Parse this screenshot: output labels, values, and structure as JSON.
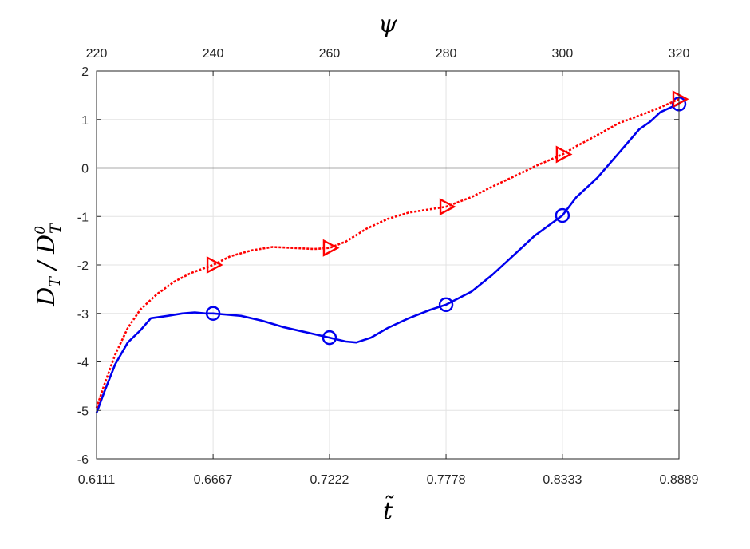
{
  "chart_data": {
    "type": "line",
    "xlabel": "t̃",
    "x2label": "ψ",
    "ylabel_main": "D",
    "ylabel_sub": "T",
    "ylabel_div": " / ",
    "ylabel_sup": "0",
    "xlim": [
      0.6111,
      0.8889
    ],
    "ylim": [
      -6,
      2
    ],
    "x_ticks": [
      "0.6111",
      "0.6667",
      "0.7222",
      "0.7778",
      "0.8333",
      "0.8889"
    ],
    "x2_ticks": [
      "220",
      "240",
      "260",
      "280",
      "300",
      "320"
    ],
    "y_ticks": [
      "-6",
      "-5",
      "-4",
      "-3",
      "-2",
      "-1",
      "0",
      "1",
      "2"
    ],
    "x_tick_values": [
      0.6111,
      0.6667,
      0.7222,
      0.7778,
      0.8333,
      0.8889
    ],
    "y_tick_values": [
      -6,
      -5,
      -4,
      -3,
      -2,
      -1,
      0,
      1,
      2
    ],
    "zero_line": 0,
    "grid": true,
    "series": [
      {
        "color": "#0000ee",
        "style": "solid",
        "marker": "circle",
        "x": [
          0.6111,
          0.615,
          0.62,
          0.626,
          0.632,
          0.637,
          0.645,
          0.652,
          0.658,
          0.663,
          0.6667,
          0.672,
          0.68,
          0.69,
          0.7,
          0.71,
          0.7222,
          0.73,
          0.735,
          0.742,
          0.75,
          0.76,
          0.77,
          0.7778,
          0.79,
          0.8,
          0.81,
          0.82,
          0.8333,
          0.84,
          0.85,
          0.855,
          0.86,
          0.865,
          0.87,
          0.875,
          0.88,
          0.885,
          0.8889
        ],
        "y": [
          -5.05,
          -4.6,
          -4.05,
          -3.6,
          -3.35,
          -3.1,
          -3.05,
          -3.0,
          -2.98,
          -3.0,
          -3.0,
          -3.02,
          -3.05,
          -3.15,
          -3.28,
          -3.38,
          -3.5,
          -3.58,
          -3.6,
          -3.5,
          -3.3,
          -3.1,
          -2.93,
          -2.82,
          -2.55,
          -2.2,
          -1.8,
          -1.4,
          -0.98,
          -0.6,
          -0.2,
          0.05,
          0.3,
          0.55,
          0.8,
          0.95,
          1.15,
          1.25,
          1.32
        ],
        "marker_x": [
          0.6667,
          0.7222,
          0.7778,
          0.8333,
          0.8889
        ],
        "marker_y": [
          -3.0,
          -3.5,
          -2.82,
          -0.98,
          1.32
        ]
      },
      {
        "color": "#ff0000",
        "style": "dotted",
        "marker": "triangle-right",
        "x": [
          0.6111,
          0.615,
          0.62,
          0.626,
          0.632,
          0.64,
          0.648,
          0.656,
          0.6667,
          0.675,
          0.685,
          0.695,
          0.705,
          0.715,
          0.7222,
          0.73,
          0.74,
          0.75,
          0.76,
          0.7778,
          0.79,
          0.8,
          0.81,
          0.82,
          0.8333,
          0.84,
          0.85,
          0.86,
          0.87,
          0.88,
          0.8889
        ],
        "y": [
          -4.95,
          -4.45,
          -3.85,
          -3.3,
          -2.92,
          -2.6,
          -2.35,
          -2.17,
          -2.0,
          -1.82,
          -1.7,
          -1.63,
          -1.65,
          -1.67,
          -1.65,
          -1.52,
          -1.25,
          -1.05,
          -0.92,
          -0.8,
          -0.6,
          -0.38,
          -0.18,
          0.03,
          0.28,
          0.45,
          0.68,
          0.92,
          1.08,
          1.25,
          1.42
        ],
        "marker_x": [
          0.6667,
          0.7222,
          0.7778,
          0.8333,
          0.8889
        ],
        "marker_y": [
          -2.0,
          -1.65,
          -0.8,
          0.28,
          1.42
        ]
      }
    ]
  }
}
